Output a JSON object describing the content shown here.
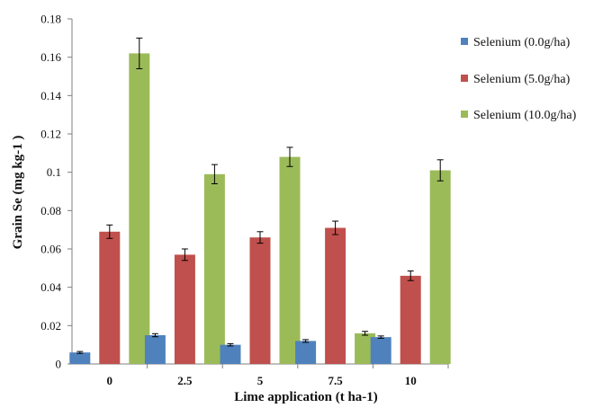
{
  "chart_data": {
    "type": "bar",
    "xlabel": "Lime application  (t ha-1)",
    "ylabel": "Grain Se (mg kg-1 )",
    "categories": [
      "0",
      "2.5",
      "5",
      "7.5",
      "10"
    ],
    "ylim": [
      0,
      0.18
    ],
    "yticks": [
      "0",
      "0.02",
      "0.04",
      "0.06",
      "0.08",
      "0.1",
      "0.12",
      "0.14",
      "0.16",
      "0.18"
    ],
    "ytick_values": [
      0,
      0.02,
      0.04,
      0.06,
      0.08,
      0.1,
      0.12,
      0.14,
      0.16,
      0.18
    ],
    "grid": false,
    "legend_position": "right",
    "series": [
      {
        "name": "Selenium (0.0g/ha)",
        "color": "#4F81BD",
        "values": [
          0.006,
          0.015,
          0.01,
          0.012,
          0.014
        ],
        "errors": [
          0.0005,
          0.0008,
          0.0006,
          0.0007,
          0.0006
        ]
      },
      {
        "name": "Selenium (5.0g/ha)",
        "color": "#C0504D",
        "values": [
          0.069,
          0.057,
          0.066,
          0.071,
          0.046
        ],
        "errors": [
          0.0035,
          0.003,
          0.003,
          0.0035,
          0.0025
        ]
      },
      {
        "name": "Selenium (10.0g/ha)",
        "color": "#9BBB59",
        "values": [
          0.162,
          0.099,
          0.108,
          0.016,
          0.101
        ],
        "errors": [
          0.008,
          0.005,
          0.005,
          0.001,
          0.0055
        ]
      }
    ]
  }
}
